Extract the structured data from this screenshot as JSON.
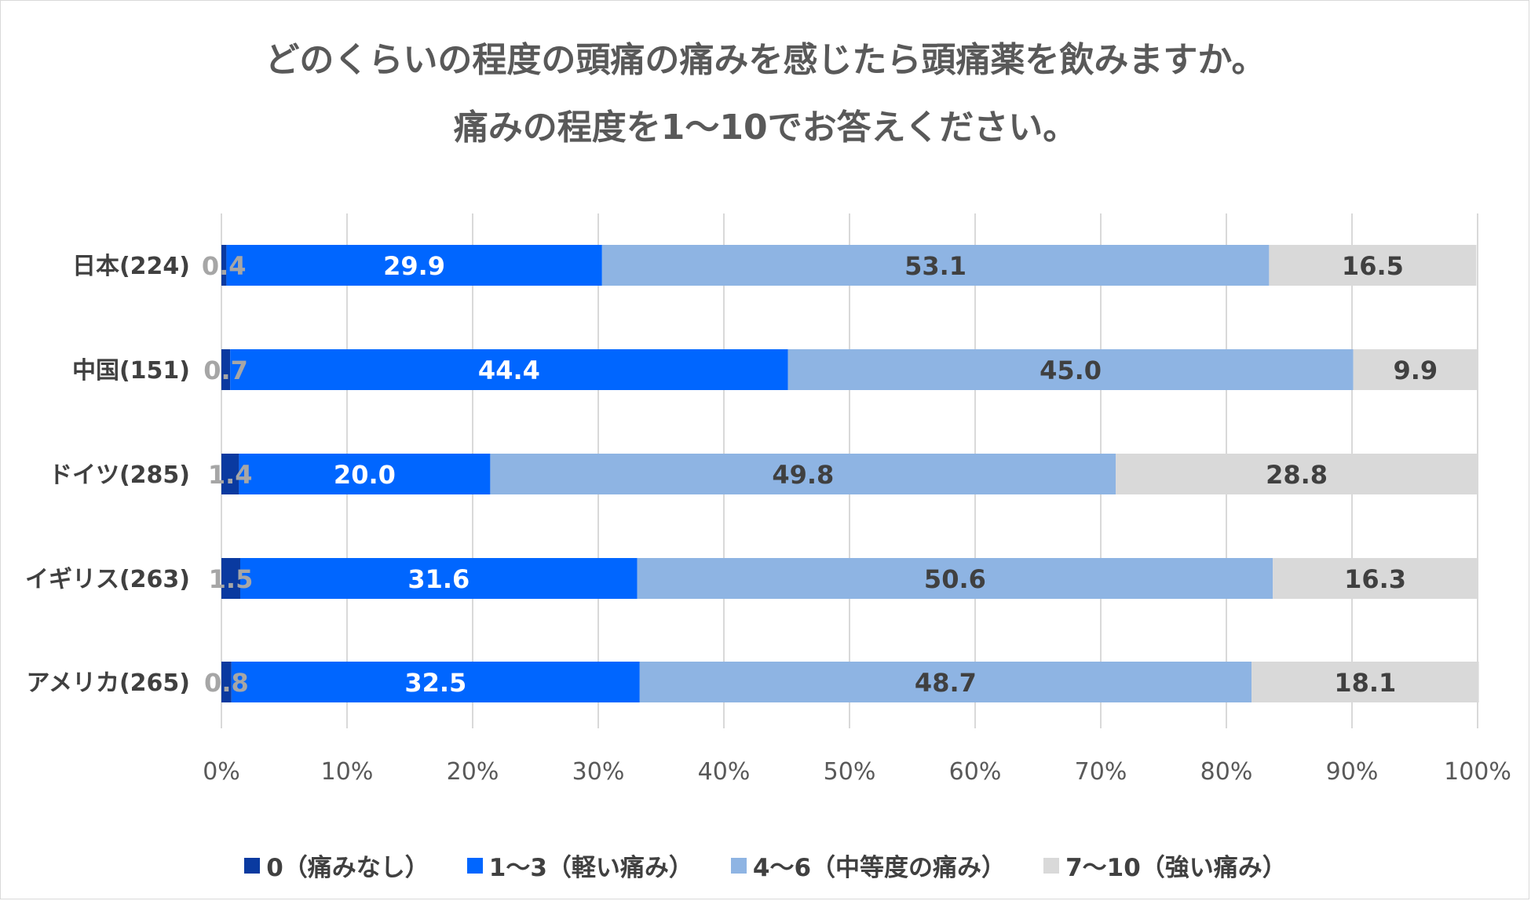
{
  "chart_data": {
    "type": "bar",
    "orientation": "horizontal",
    "stacked": true,
    "title_lines": [
      "どのくらいの程度の頭痛の痛みを感じたら頭痛薬を飲みますか。",
      "痛みの程度を1～10でお答えください。"
    ],
    "categories": [
      "日本(224)",
      "中国(151)",
      "ドイツ(285)",
      "イギリス(263)",
      "アメリカ(265)"
    ],
    "series": [
      {
        "name": "0（痛みなし）",
        "color": "#0a3aa0",
        "label_color": "#a6a6a6",
        "values": [
          0.4,
          0.7,
          1.4,
          1.5,
          0.8
        ]
      },
      {
        "name": "1～3（軽い痛み）",
        "color": "#0066ff",
        "label_color": "#ffffff",
        "values": [
          29.9,
          44.4,
          20.0,
          31.6,
          32.5
        ]
      },
      {
        "name": "4～6（中等度の痛み）",
        "color": "#8eb4e3",
        "label_color": "#404040",
        "values": [
          53.1,
          45.0,
          49.8,
          50.6,
          48.7
        ]
      },
      {
        "name": "7～10（強い痛み）",
        "color": "#d9d9d9",
        "label_color": "#404040",
        "values": [
          16.5,
          9.9,
          28.8,
          16.3,
          18.1
        ]
      }
    ],
    "data_labels": [
      [
        "0.4",
        "29.9",
        "53.1",
        "16.5"
      ],
      [
        "0.7",
        "44.4",
        "45.0",
        "9.9"
      ],
      [
        "1.4",
        "20.0",
        "49.8",
        "28.8"
      ],
      [
        "1.5",
        "31.6",
        "50.6",
        "16.3"
      ],
      [
        "0.8",
        "32.5",
        "48.7",
        "18.1"
      ]
    ],
    "xlim": [
      0,
      100
    ],
    "x_ticks": [
      "0%",
      "10%",
      "20%",
      "30%",
      "40%",
      "50%",
      "60%",
      "70%",
      "80%",
      "90%",
      "100%"
    ],
    "grid": true,
    "legend_position": "bottom"
  }
}
